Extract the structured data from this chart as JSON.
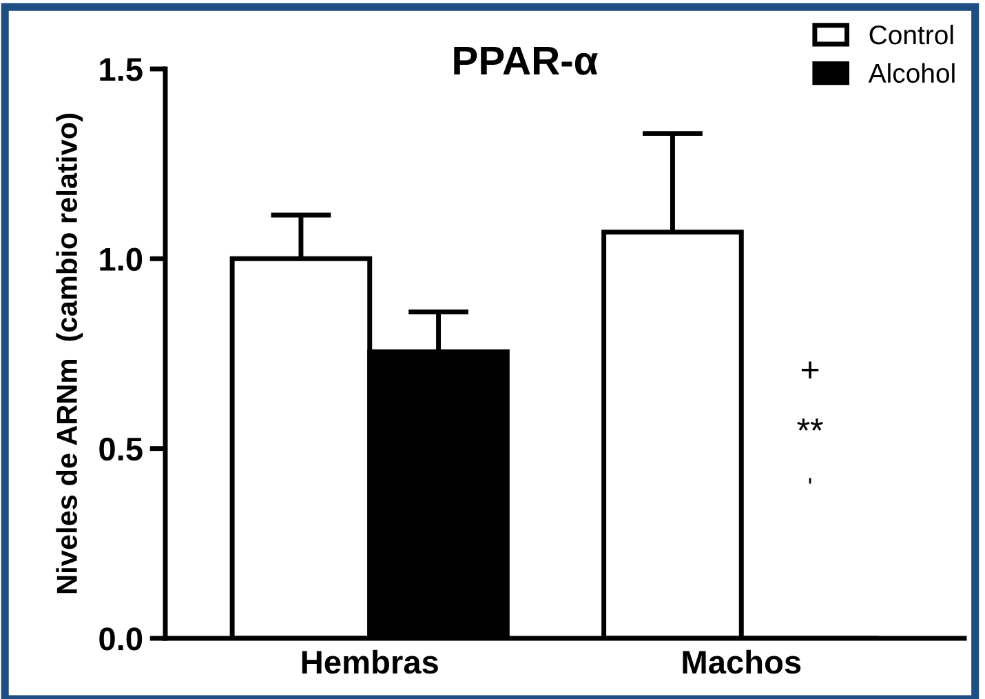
{
  "chart_data": {
    "type": "bar",
    "title": "PPAR-α",
    "ylabel": "Niveles de ARNm  (cambio relativo)",
    "categories": [
      "Hembras",
      "Machos"
    ],
    "series": [
      {
        "name": "Control",
        "color": "#ffffff",
        "values": [
          1.0,
          1.07
        ],
        "errors": [
          [
            1.0,
            1.115
          ],
          [
            1.07,
            1.33
          ]
        ]
      },
      {
        "name": "Alcohol",
        "color": "#000000",
        "values": [
          0.755,
          0
        ],
        "errors": [
          [
            0.755,
            0.86
          ],
          null
        ]
      }
    ],
    "ylim": [
      0,
      1.5
    ],
    "yticks": [
      {
        "value": 0,
        "label": "0.0"
      },
      {
        "value": 0.5,
        "label": "0.5"
      },
      {
        "value": 1.0,
        "label": "1.0"
      },
      {
        "value": 1.5,
        "label": "1.5"
      }
    ],
    "annotations": [
      "+",
      "**",
      "ˈ"
    ],
    "grid": false,
    "legend": "top right"
  }
}
